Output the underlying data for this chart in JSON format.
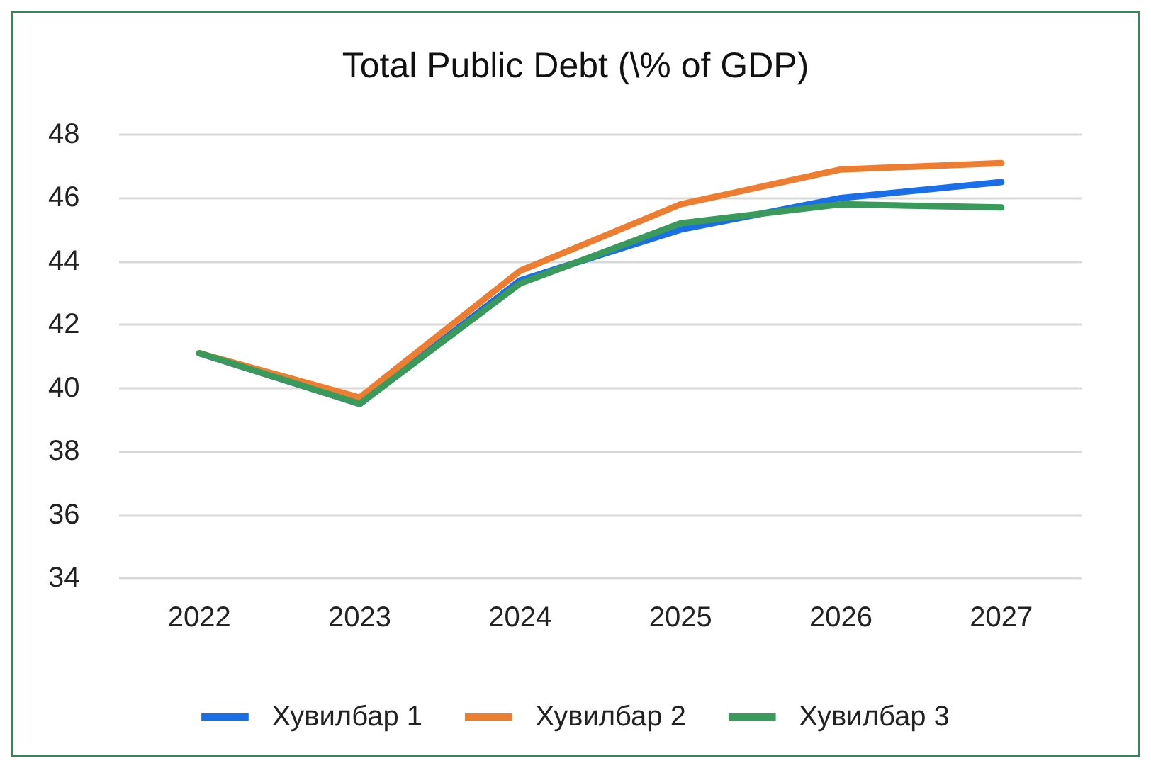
{
  "chart_data": {
    "type": "line",
    "title": "Total Public Debt (\\% of GDP)",
    "categories": [
      "2022",
      "2023",
      "2024",
      "2025",
      "2026",
      "2027"
    ],
    "series": [
      {
        "name": "Хувилбар 1",
        "color": "#1a6fe8",
        "values": [
          41.1,
          39.5,
          43.4,
          45.0,
          46.0,
          46.5
        ]
      },
      {
        "name": "Хувилбар 2",
        "color": "#ed7d31",
        "values": [
          41.1,
          39.7,
          43.7,
          45.8,
          46.9,
          47.1
        ]
      },
      {
        "name": "Хувилбар 3",
        "color": "#3a9a5c",
        "values": [
          41.1,
          39.5,
          43.3,
          45.2,
          45.8,
          45.7
        ]
      }
    ],
    "ylim": [
      34,
      48
    ],
    "yticks": [
      34,
      36,
      38,
      40,
      42,
      44,
      46,
      48
    ],
    "grid": "y",
    "legend": "bottom",
    "marker": "none",
    "line_style": "solid"
  }
}
